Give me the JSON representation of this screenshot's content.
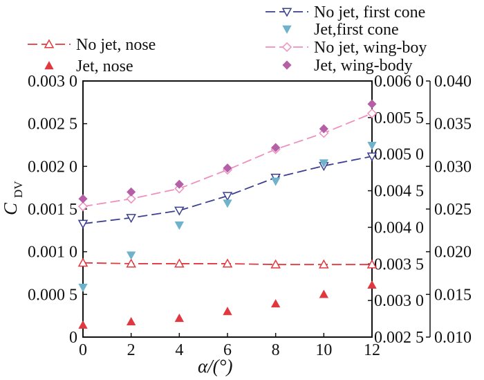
{
  "chart_data": {
    "type": "line",
    "x": [
      0,
      2,
      4,
      6,
      8,
      10,
      12
    ],
    "xlabel": "α/(°)",
    "xlim": [
      0,
      12
    ],
    "xticks": [
      "0",
      "2",
      "4",
      "6",
      "8",
      "10",
      "12"
    ],
    "ylabel": "C",
    "ylabel_sub": "DV",
    "axes": [
      {
        "id": "left",
        "range": [
          0,
          0.003
        ],
        "ticks": [
          "0",
          "0.000 5",
          "0.001 0",
          "0.001 5",
          "0.002 0",
          "0.002 5",
          "0.003 0"
        ]
      },
      {
        "id": "right1",
        "range": [
          0.0025,
          0.006
        ],
        "ticks": [
          "0.002 5",
          "0.003 0",
          "0.003 5",
          "0.004 0",
          "0.004 5",
          "0.005 0",
          "0.005 5",
          "0.006 0"
        ]
      },
      {
        "id": "right2",
        "range": [
          0.01,
          0.04
        ],
        "ticks": [
          "0.010",
          "0.015",
          "0.020",
          "0.025",
          "0.030",
          "0.035",
          "0.040"
        ]
      }
    ],
    "series": [
      {
        "name": "No jet, nose",
        "axis": "left",
        "style": "dashed-line-open-triangle-up",
        "color": "#e0383e",
        "values": [
          0.00087,
          0.00086,
          0.00086,
          0.00086,
          0.00085,
          0.00085,
          0.00085
        ]
      },
      {
        "name": "Jet, nose",
        "axis": "left",
        "style": "filled-triangle-up",
        "color": "#e0383e",
        "values": [
          0.00014,
          0.00018,
          0.00022,
          0.0003,
          0.00039,
          0.0005,
          0.00061
        ]
      },
      {
        "name": "No jet, first cone",
        "axis": "right1",
        "style": "dashed-line-open-triangle-down",
        "color": "#3a3f8f",
        "values": [
          0.00405,
          0.00413,
          0.00423,
          0.00443,
          0.00468,
          0.00484,
          0.00497
        ]
      },
      {
        "name": "Jet,first cone",
        "axis": "right1",
        "style": "filled-triangle-down",
        "color": "#6fb2cc",
        "values": [
          0.00318,
          0.00362,
          0.00403,
          0.00433,
          0.00463,
          0.00488,
          0.00512
        ]
      },
      {
        "name": "No jet, wing-boy",
        "axis": "right2",
        "style": "dashed-line-open-diamond",
        "color": "#ef8fbf",
        "values": [
          0.0253,
          0.0262,
          0.0274,
          0.0296,
          0.032,
          0.0339,
          0.0362
        ]
      },
      {
        "name": "Jet, wing-body",
        "axis": "right2",
        "style": "filled-diamond",
        "color": "#b55fa6",
        "values": [
          0.0262,
          0.027,
          0.0279,
          0.0298,
          0.0322,
          0.0344,
          0.0373
        ]
      }
    ],
    "legend": [
      "top-left",
      "top-right"
    ],
    "grid": false
  }
}
